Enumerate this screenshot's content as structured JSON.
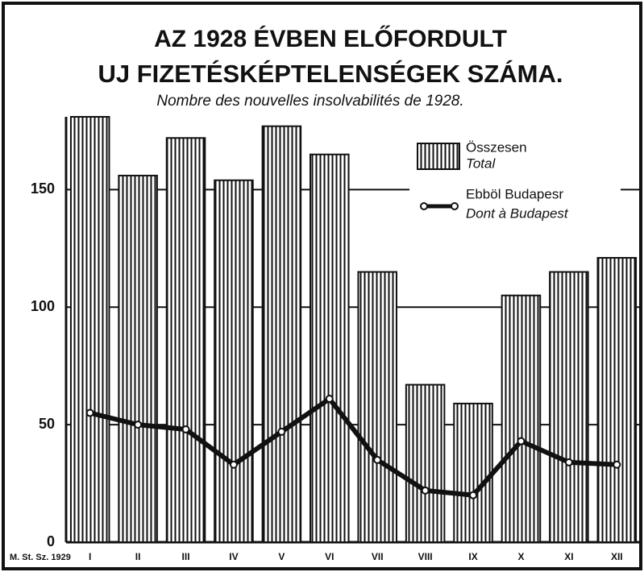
{
  "chart_data": {
    "type": "bar_line",
    "title": [
      "AZ 1928 ÉVBEN ELŐFORDULT",
      "UJ FIZETÉSKÉPTELENSÉGEK SZÁMA."
    ],
    "subtitle": "Nombre des nouvelles insolvabilités de 1928.",
    "source": "M. St. Sz. 1929",
    "categories": [
      "I",
      "II",
      "III",
      "IV",
      "V",
      "VI",
      "VII",
      "VIII",
      "IX",
      "X",
      "XI",
      "XII"
    ],
    "series": [
      {
        "name": "Összesen",
        "name_fr": "Total",
        "color": "#111111",
        "kind": "bar",
        "values": [
          181,
          156,
          172,
          154,
          177,
          165,
          115,
          67,
          59,
          105,
          115,
          121
        ]
      },
      {
        "name": "Ebböl Budapesr",
        "name_fr": "Dont à Budapest",
        "color": "#111111",
        "kind": "line",
        "values": [
          55,
          50,
          48,
          33,
          47,
          61,
          35,
          22,
          20,
          43,
          34,
          33
        ]
      }
    ],
    "ylim": [
      0,
      181
    ],
    "yticks": [
      0,
      50,
      100,
      150
    ],
    "grid": true
  }
}
